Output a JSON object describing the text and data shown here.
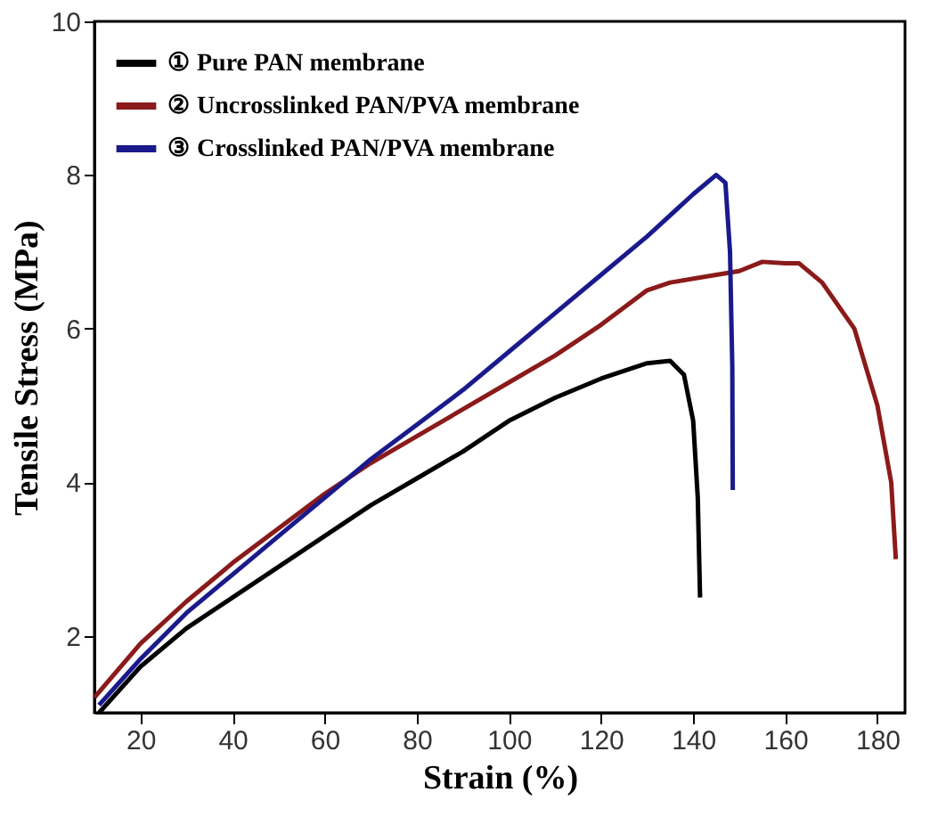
{
  "chart_data": {
    "type": "line",
    "xlabel": "Strain (%)",
    "ylabel": "Tensile Stress (MPa)",
    "xlim": [
      10,
      186
    ],
    "xticks": [
      20,
      40,
      60,
      80,
      100,
      120,
      140,
      160,
      180
    ],
    "ylim": [
      1,
      10
    ],
    "yticks": [
      2,
      4,
      6,
      8,
      10
    ],
    "grid": false,
    "legend": "top left",
    "marker": "none",
    "line_style": "solid",
    "series": [
      {
        "name": "① Pure PAN membrane",
        "color": "#000000",
        "x": [
          11,
          20,
          30,
          40,
          50,
          60,
          70,
          80,
          90,
          100,
          110,
          120,
          130,
          135,
          138,
          140,
          141,
          141.5
        ],
        "values": [
          1,
          1.6,
          2.1,
          2.5,
          2.9,
          3.3,
          3.7,
          4.05,
          4.4,
          4.8,
          5.1,
          5.35,
          5.55,
          5.58,
          5.4,
          4.8,
          3.8,
          2.5
        ]
      },
      {
        "name": "② Uncrosslinked PAN/PVA membrane",
        "color": "#8b1a1a",
        "x": [
          10,
          20,
          30,
          40,
          50,
          60,
          70,
          80,
          90,
          100,
          110,
          120,
          130,
          135,
          145,
          150,
          155,
          160,
          163,
          168,
          175,
          180,
          183,
          184
        ],
        "values": [
          1.2,
          1.9,
          2.45,
          2.95,
          3.4,
          3.85,
          4.25,
          4.6,
          4.95,
          5.3,
          5.65,
          6.05,
          6.5,
          6.6,
          6.7,
          6.75,
          6.87,
          6.85,
          6.85,
          6.6,
          6.0,
          5.0,
          4.0,
          3.0
        ]
      },
      {
        "name": "③ Crosslinked PAN/PVA membrane",
        "color": "#1a1a8c",
        "x": [
          11,
          20,
          30,
          40,
          50,
          60,
          70,
          80,
          90,
          100,
          110,
          120,
          130,
          140,
          145,
          147,
          148,
          148.5,
          148.6
        ],
        "values": [
          1.1,
          1.7,
          2.3,
          2.8,
          3.3,
          3.8,
          4.3,
          4.75,
          5.2,
          5.7,
          6.2,
          6.7,
          7.2,
          7.75,
          8.0,
          7.9,
          7.0,
          5.5,
          3.9
        ]
      }
    ]
  }
}
